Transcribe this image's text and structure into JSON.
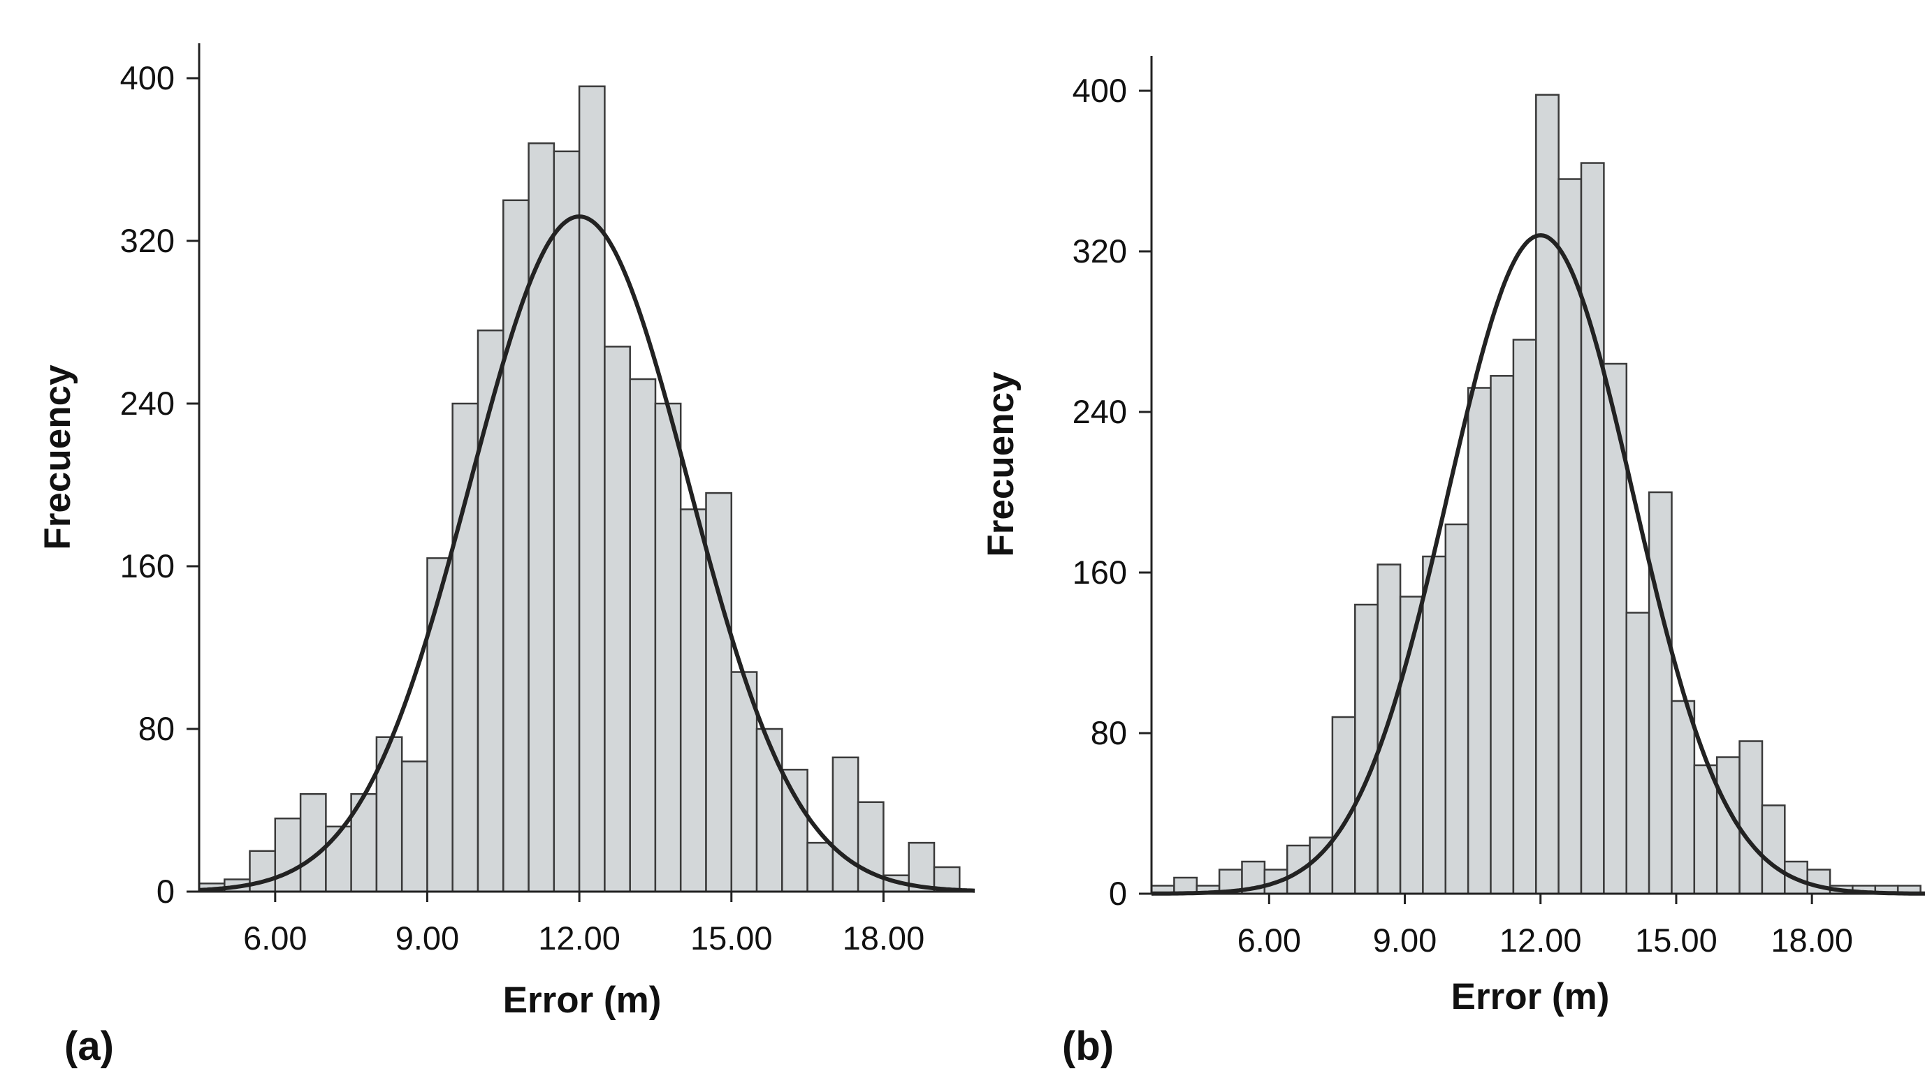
{
  "colors": {
    "bar_fill": "#d3d7d9",
    "bar_stroke": "#3a3a3a",
    "curve": "#222222",
    "axis": "#222222"
  },
  "chart_data": [
    {
      "type": "bar",
      "panel_label": "(a)",
      "xlabel": "Error (m)",
      "ylabel": "Frecuency",
      "xlim": [
        4.5,
        19.8
      ],
      "ylim": [
        0,
        400
      ],
      "x_ticks": [
        "6.00",
        "9.00",
        "12.00",
        "15.00",
        "18.00"
      ],
      "y_ticks": [
        "0",
        "80",
        "160",
        "240",
        "320",
        "400"
      ],
      "bin_start": 4.5,
      "bin_width": 0.5,
      "values": [
        4,
        6,
        20,
        36,
        48,
        32,
        48,
        76,
        64,
        164,
        240,
        276,
        340,
        368,
        364,
        396,
        268,
        252,
        240,
        188,
        196,
        108,
        80,
        60,
        24,
        66,
        44,
        8,
        24,
        12
      ],
      "fit_curve": {
        "mean": 12.0,
        "sd": 2.15,
        "peak": 332
      }
    },
    {
      "type": "bar",
      "panel_label": "(b)",
      "xlabel": "Error (m)",
      "ylabel": "Frecuency",
      "xlim": [
        3.4,
        20.5
      ],
      "ylim": [
        0,
        400
      ],
      "x_ticks": [
        "6.00",
        "9.00",
        "12.00",
        "15.00",
        "18.00"
      ],
      "y_ticks": [
        "0",
        "80",
        "160",
        "240",
        "320",
        "400"
      ],
      "bin_start": 3.4,
      "bin_width": 0.5,
      "values": [
        4,
        8,
        4,
        12,
        16,
        12,
        24,
        28,
        88,
        144,
        164,
        148,
        168,
        184,
        252,
        258,
        276,
        398,
        356,
        364,
        264,
        140,
        200,
        96,
        64,
        68,
        76,
        44,
        16,
        12,
        4,
        4,
        4,
        4
      ],
      "fit_curve": {
        "mean": 12.0,
        "sd": 2.05,
        "peak": 328
      }
    }
  ]
}
